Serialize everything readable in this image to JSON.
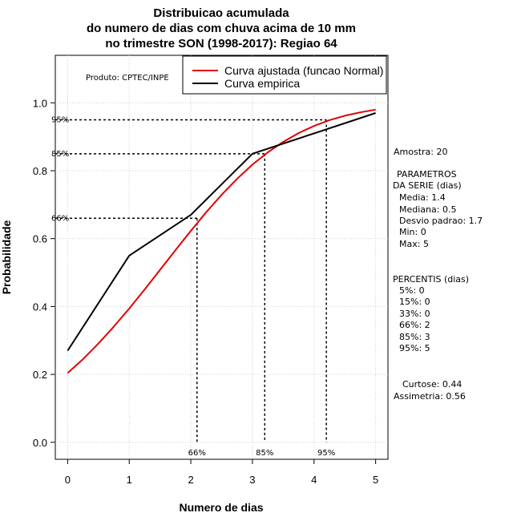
{
  "chart_data": {
    "type": "line",
    "title": [
      "Distribuicao acumulada",
      "do numero de dias com chuva acima de 10 mm",
      "no trimestre SON (1998-2017): Regiao 64"
    ],
    "xlabel": "Numero de dias",
    "ylabel": "Probabilidade",
    "xlim": [
      -0.2,
      5.2
    ],
    "ylim": [
      -0.05,
      1.14
    ],
    "x_ticks": [
      0,
      1,
      2,
      3,
      4,
      5
    ],
    "x_tick_labels": [
      "0",
      "1",
      "2",
      "3",
      "4",
      "5"
    ],
    "y_ticks": [
      0.0,
      0.2,
      0.4,
      0.6,
      0.8,
      1.0
    ],
    "y_tick_labels": [
      "0.0",
      "0.2",
      "0.4",
      "0.6",
      "0.8",
      "1.0"
    ],
    "grid": true,
    "colors": {
      "fitted": "#e00000",
      "empirical": "#000000"
    },
    "series": [
      {
        "name": "Curva ajustada (funcao Normal)",
        "x": [
          0,
          0.25,
          0.5,
          0.75,
          1,
          1.25,
          1.5,
          1.75,
          2,
          2.25,
          2.5,
          2.75,
          3,
          3.25,
          3.5,
          3.75,
          4,
          4.25,
          4.5,
          4.75,
          5
        ],
        "values": [
          0.204,
          0.245,
          0.291,
          0.341,
          0.394,
          0.45,
          0.508,
          0.566,
          0.623,
          0.678,
          0.729,
          0.776,
          0.818,
          0.854,
          0.885,
          0.911,
          0.932,
          0.949,
          0.962,
          0.972,
          0.98
        ]
      },
      {
        "name": "Curva empirica",
        "x": [
          0,
          1,
          2,
          3,
          4,
          5
        ],
        "values": [
          0.27,
          0.55,
          0.67,
          0.85,
          0.91,
          0.97
        ]
      }
    ],
    "percentile_markers": [
      {
        "label": "95%",
        "prob": 0.95,
        "x": 4.2
      },
      {
        "label": "85%",
        "prob": 0.85,
        "x": 3.2
      },
      {
        "label": "66%",
        "prob": 0.66,
        "x": 2.1
      }
    ],
    "legend": {
      "placement": "top-right"
    },
    "annotation": "Produto: CPTEC/INPE"
  },
  "side_panel": {
    "sample": "Amostra: 20",
    "params_title": "PARAMETROS",
    "params_subtitle": "DA SERIE (dias)",
    "params": [
      "Media: 1.4",
      "Mediana: 0.5",
      "Desvio padrao: 1.7",
      "Min: 0",
      "Max: 5"
    ],
    "percentis_title": "PERCENTIS (dias)",
    "percentis": [
      "5%: 0",
      "15%: 0",
      "33%: 0",
      "66%: 2",
      "85%: 3",
      "95%: 5"
    ],
    "curtose": "Curtose: 0.44",
    "assimetria": "Assimetria: 0.56"
  }
}
